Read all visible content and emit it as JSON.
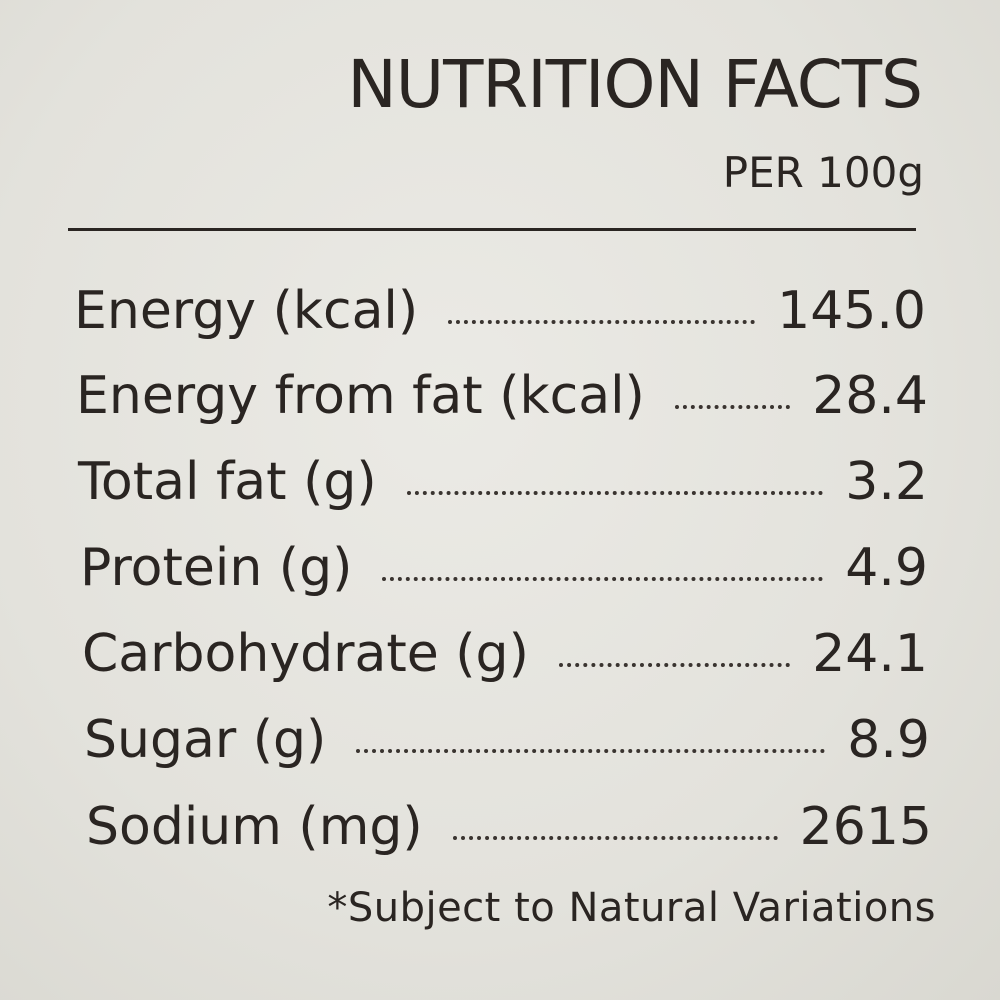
{
  "label": {
    "title": "NUTRITION FACTS",
    "serving": "PER 100g",
    "rows": [
      {
        "name": "Energy (kcal)",
        "value": "145.0"
      },
      {
        "name": "Energy from fat (kcal)",
        "value": "28.4"
      },
      {
        "name": "Total fat (g)",
        "value": "3.2"
      },
      {
        "name": "Protein (g)",
        "value": "4.9"
      },
      {
        "name": "Carbohydrate (g)",
        "value": "24.1"
      },
      {
        "name": "Sugar (g)",
        "value": "8.9"
      },
      {
        "name": "Sodium (mg)",
        "value": "2615"
      }
    ],
    "footnote": "*Subject to Natural Variations"
  }
}
